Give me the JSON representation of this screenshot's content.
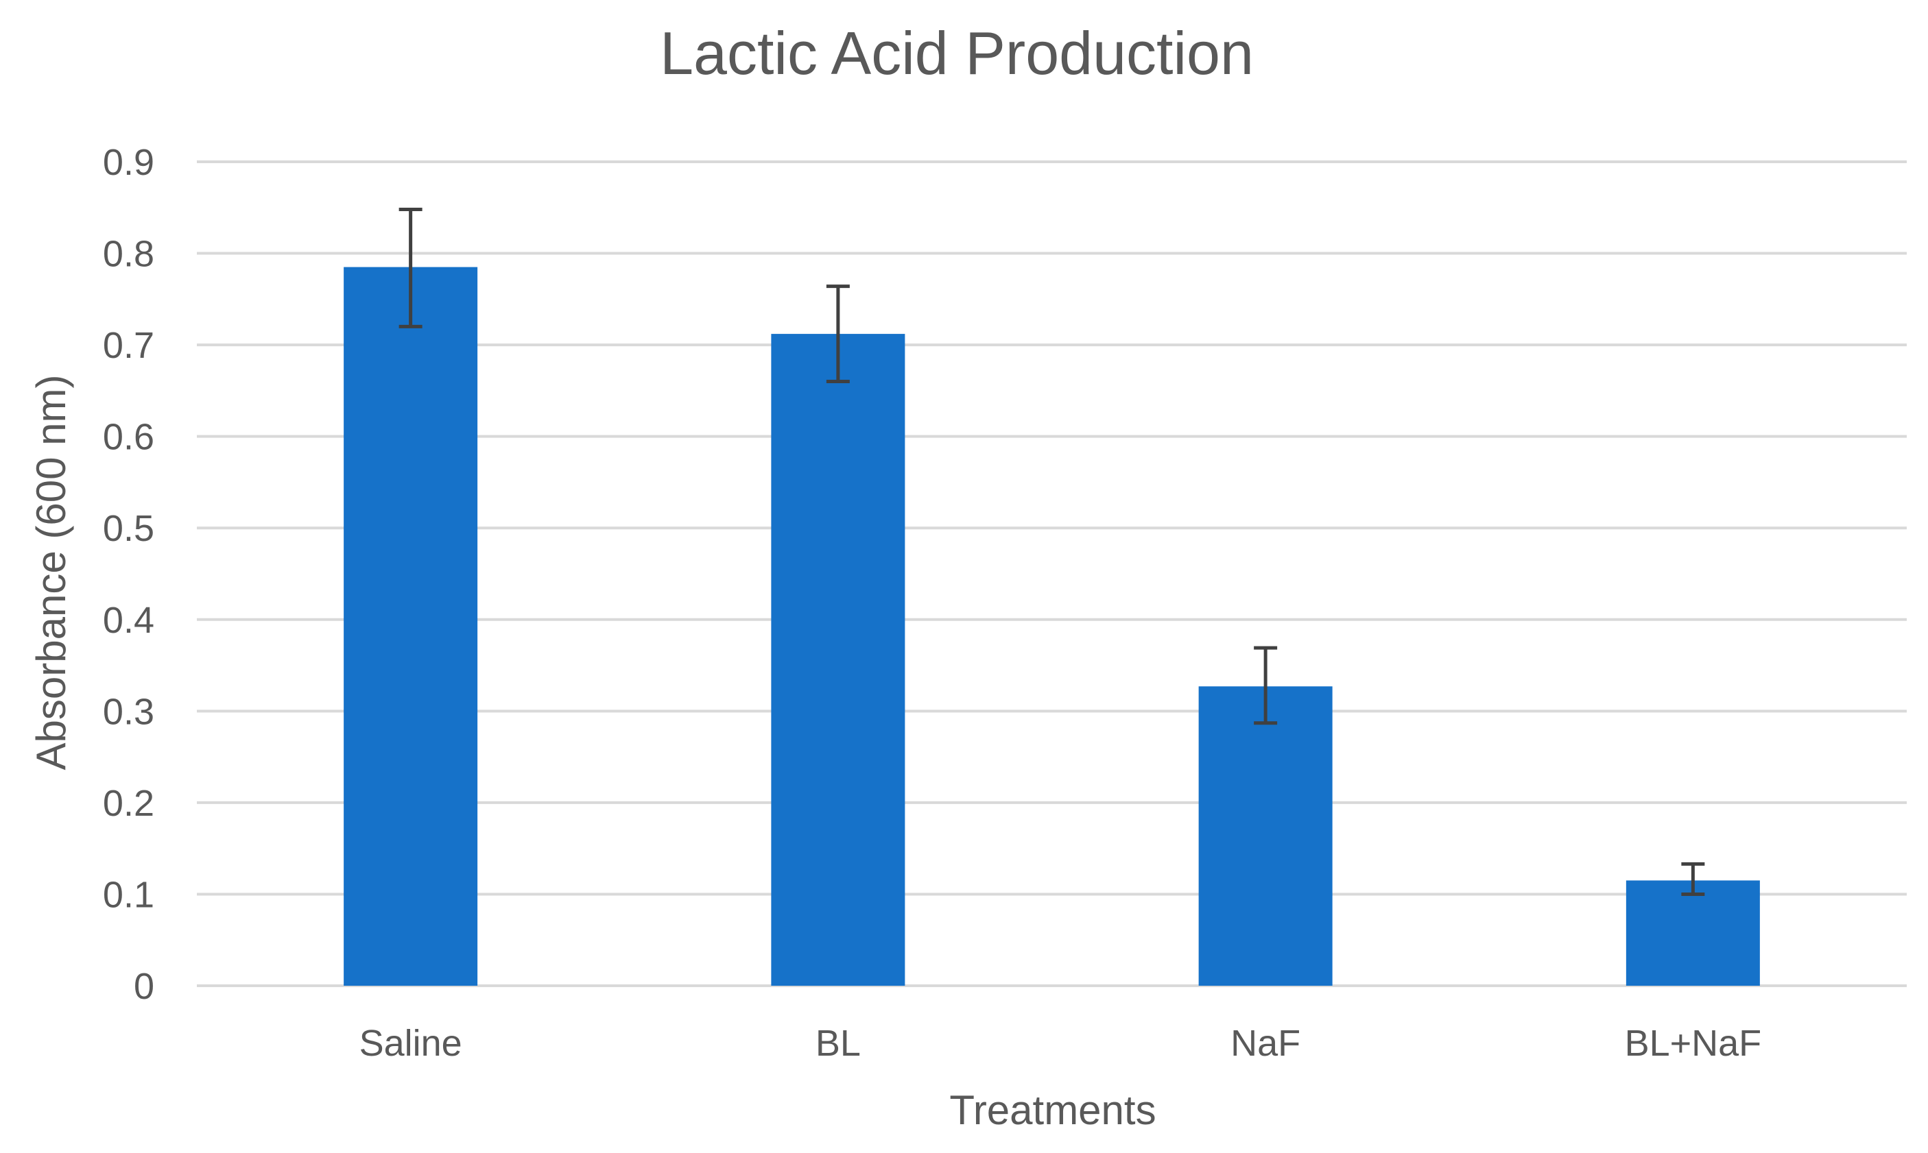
{
  "chart_data": {
    "type": "bar",
    "title": "Lactic Acid Production",
    "xlabel": "Treatments",
    "ylabel": "Absorbance (600 nm)",
    "categories": [
      "Saline",
      "BL",
      "NaF",
      "BL+NaF"
    ],
    "values": [
      0.785,
      0.712,
      0.327,
      0.115
    ],
    "error_high": [
      0.848,
      0.764,
      0.369,
      0.133
    ],
    "error_low": [
      0.72,
      0.66,
      0.287,
      0.1
    ],
    "ylim": [
      0,
      0.9
    ],
    "yticks": [
      "0",
      "0.1",
      "0.2",
      "0.3",
      "0.4",
      "0.5",
      "0.6",
      "0.7",
      "0.8",
      "0.9"
    ],
    "grid": true,
    "legend": "none",
    "bar_color": "#1672C9",
    "error_bar_color": "#404040",
    "gridline_color": "#D9D9D9",
    "text_color": "#595959"
  }
}
